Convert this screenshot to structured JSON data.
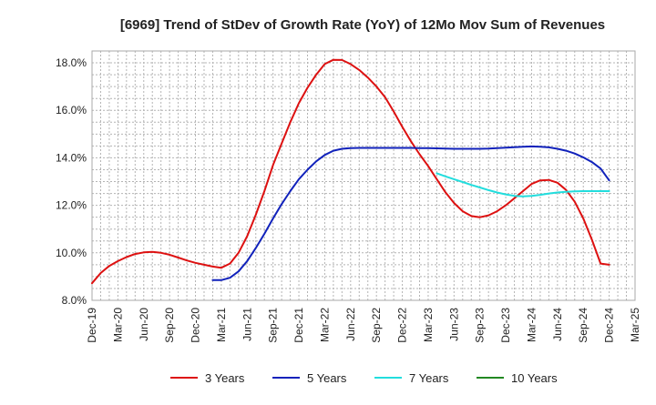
{
  "chart_data": {
    "type": "line",
    "title": "[6969]  Trend of StDev of Growth Rate (YoY) of 12Mo Mov Sum of Revenues",
    "xlabel": "",
    "ylabel": "",
    "ylim": [
      8.0,
      18.5
    ],
    "yticks": [
      8.0,
      10.0,
      12.0,
      14.0,
      16.0,
      18.0
    ],
    "ytick_labels": [
      "8.0%",
      "10.0%",
      "12.0%",
      "14.0%",
      "16.0%",
      "18.0%"
    ],
    "x_range": [
      0,
      63
    ],
    "x_ticks": [
      0,
      3,
      6,
      9,
      12,
      15,
      18,
      21,
      24,
      27,
      30,
      33,
      36,
      39,
      42,
      45,
      48,
      51,
      54,
      57,
      60,
      63
    ],
    "x_tick_labels": [
      "Dec-19",
      "Mar-20",
      "Jun-20",
      "Sep-20",
      "Dec-20",
      "Mar-21",
      "Jun-21",
      "Sep-21",
      "Dec-21",
      "Mar-22",
      "Jun-22",
      "Sep-22",
      "Dec-22",
      "Mar-23",
      "Jun-23",
      "Sep-23",
      "Dec-23",
      "Mar-24",
      "Jun-24",
      "Sep-24",
      "Dec-24",
      "Mar-25"
    ],
    "grid": true,
    "legend_position": "bottom",
    "series": [
      {
        "name": "3 Years",
        "color": "#dd1111",
        "x": [
          0,
          1,
          2,
          3,
          4,
          5,
          6,
          7,
          8,
          9,
          10,
          11,
          12,
          13,
          14,
          15,
          16,
          17,
          18,
          19,
          20,
          21,
          22,
          23,
          24,
          25,
          26,
          27,
          28,
          29,
          30,
          31,
          32,
          33,
          34,
          35,
          36,
          37,
          38,
          39,
          40,
          41,
          42,
          43,
          44,
          45,
          46,
          47,
          48,
          49,
          50,
          51,
          52,
          53,
          54,
          55,
          56,
          57,
          58,
          59,
          60
        ],
        "values": [
          8.72,
          9.15,
          9.45,
          9.65,
          9.82,
          9.95,
          10.02,
          10.04,
          10.0,
          9.92,
          9.8,
          9.68,
          9.58,
          9.5,
          9.42,
          9.37,
          9.55,
          10.0,
          10.7,
          11.6,
          12.6,
          13.7,
          14.6,
          15.5,
          16.3,
          16.95,
          17.5,
          17.95,
          18.13,
          18.12,
          17.95,
          17.7,
          17.38,
          17.0,
          16.55,
          15.95,
          15.3,
          14.7,
          14.15,
          13.65,
          13.1,
          12.55,
          12.1,
          11.75,
          11.55,
          11.5,
          11.58,
          11.75,
          12.0,
          12.3,
          12.6,
          12.9,
          13.05,
          13.07,
          12.95,
          12.65,
          12.15,
          11.45,
          10.55,
          9.55,
          9.5
        ]
      },
      {
        "name": "5 Years",
        "color": "#1122bb",
        "x": [
          14,
          15,
          16,
          17,
          18,
          19,
          20,
          21,
          22,
          23,
          24,
          25,
          26,
          27,
          28,
          29,
          30,
          31,
          32,
          33,
          34,
          35,
          36,
          37,
          38,
          39,
          40,
          41,
          42,
          43,
          44,
          45,
          46,
          47,
          48,
          49,
          50,
          51,
          52,
          53,
          54,
          55,
          56,
          57,
          58,
          59,
          60
        ],
        "values": [
          8.85,
          8.85,
          8.95,
          9.22,
          9.65,
          10.2,
          10.8,
          11.45,
          12.05,
          12.6,
          13.1,
          13.5,
          13.85,
          14.12,
          14.3,
          14.38,
          14.41,
          14.42,
          14.42,
          14.42,
          14.42,
          14.42,
          14.42,
          14.42,
          14.41,
          14.41,
          14.4,
          14.39,
          14.38,
          14.38,
          14.38,
          14.38,
          14.39,
          14.41,
          14.43,
          14.45,
          14.47,
          14.48,
          14.47,
          14.44,
          14.38,
          14.3,
          14.18,
          14.02,
          13.82,
          13.55,
          13.05
        ]
      },
      {
        "name": "7 Years",
        "color": "#22dddd",
        "x": [
          40,
          41,
          42,
          43,
          44,
          45,
          46,
          47,
          48,
          49,
          50,
          51,
          52,
          53,
          54,
          55,
          56,
          57,
          58,
          59,
          60
        ],
        "values": [
          13.35,
          13.22,
          13.1,
          12.98,
          12.86,
          12.75,
          12.64,
          12.54,
          12.46,
          12.4,
          12.38,
          12.4,
          12.44,
          12.5,
          12.54,
          12.57,
          12.59,
          12.6,
          12.6,
          12.6,
          12.6
        ]
      },
      {
        "name": "10 Years",
        "color": "#228822",
        "x": [],
        "values": []
      }
    ]
  }
}
